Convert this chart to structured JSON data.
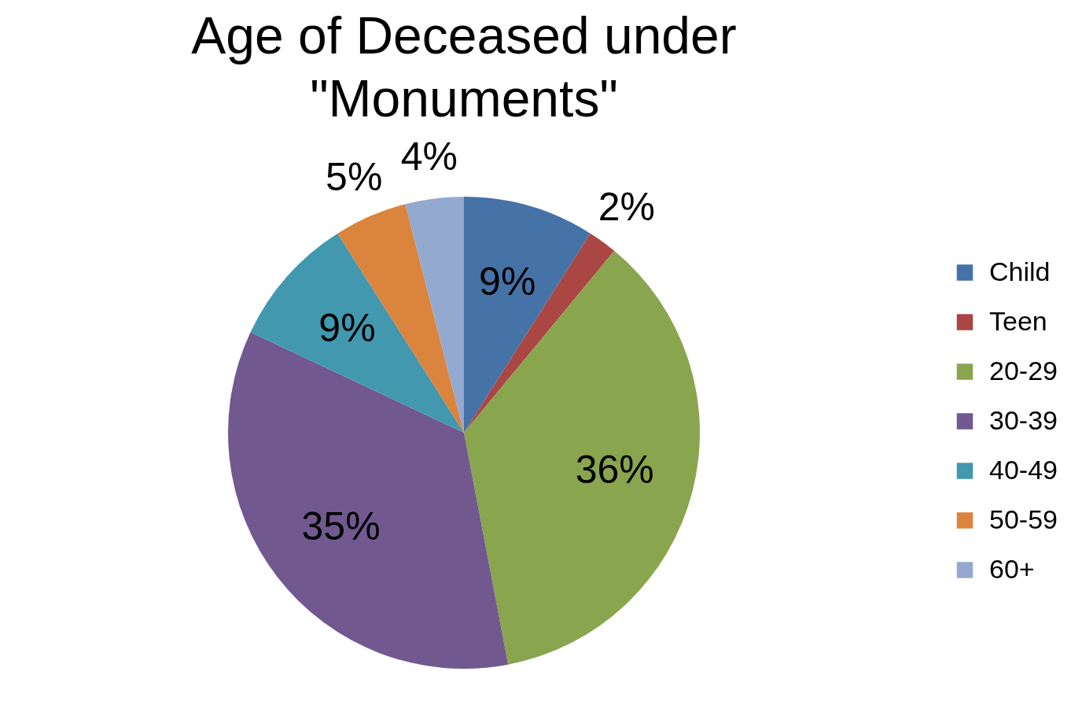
{
  "chart_data": {
    "type": "pie",
    "title": "Age of Deceased under \"Monuments\"",
    "categories": [
      "Child",
      "Teen",
      "20-29",
      "30-39",
      "40-49",
      "50-59",
      "60+"
    ],
    "values": [
      9,
      2,
      36,
      35,
      9,
      5,
      4
    ],
    "colors": [
      "#4572a7",
      "#aa4643",
      "#89a54e",
      "#71588f",
      "#4198af",
      "#db843d",
      "#93a9cf"
    ],
    "value_labels": [
      "9%",
      "2%",
      "36%",
      "35%",
      "9%",
      "5%",
      "4%"
    ],
    "legend": "right"
  }
}
